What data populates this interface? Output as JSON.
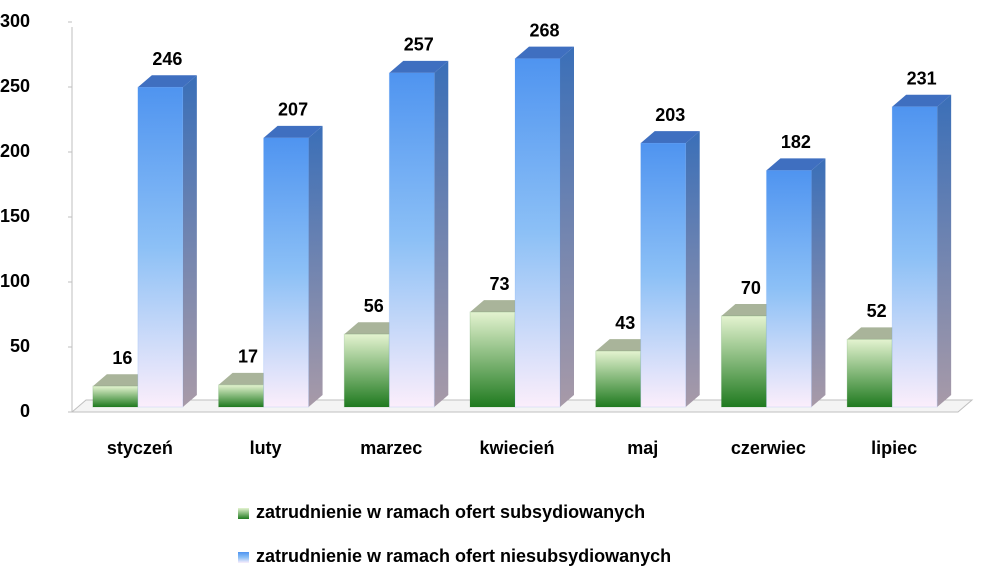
{
  "chart_data": {
    "type": "bar3d",
    "categories": [
      "styczeń",
      "luty",
      "marzec",
      "kwiecień",
      "maj",
      "czerwiec",
      "lipiec"
    ],
    "series": [
      {
        "name": "zatrudnienie w ramach ofert subsydiowanych",
        "color": "#1f7a1f",
        "values": [
          16,
          17,
          56,
          73,
          43,
          70,
          52
        ]
      },
      {
        "name": "zatrudnienie w ramach ofert niesubsydiowanych",
        "color": "#4f94f0",
        "values": [
          246,
          207,
          257,
          268,
          203,
          182,
          231
        ]
      }
    ],
    "ylim": [
      0,
      300
    ],
    "yticks": [
      0,
      50,
      100,
      150,
      200,
      250,
      300
    ],
    "grid": false,
    "legend": "bottom"
  }
}
